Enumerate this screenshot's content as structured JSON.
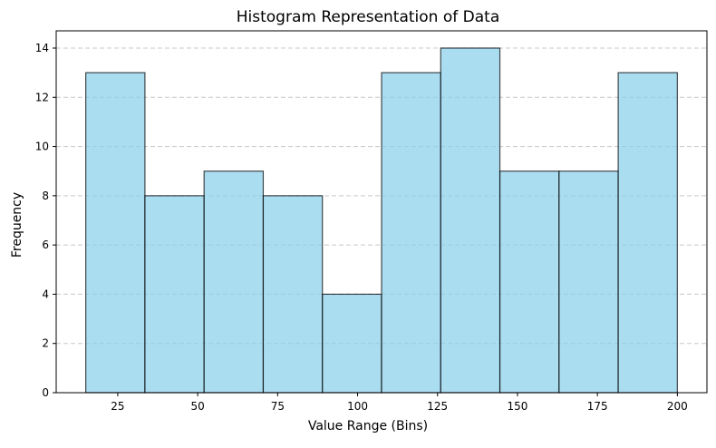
{
  "chart_data": {
    "type": "bar",
    "title": "Histogram Representation of Data",
    "xlabel": "Value Range (Bins)",
    "ylabel": "Frequency",
    "bin_edges": [
      15.0,
      33.5,
      52.0,
      70.5,
      89.0,
      107.5,
      126.0,
      144.5,
      163.0,
      181.5,
      200.0
    ],
    "values": [
      13,
      8,
      9,
      8,
      4,
      13,
      14,
      9,
      9,
      13
    ],
    "xlim": [
      5.75,
      209.25
    ],
    "ylim": [
      0,
      14.7
    ],
    "xticks": [
      25,
      50,
      75,
      100,
      125,
      150,
      175,
      200
    ],
    "yticks": [
      0,
      2,
      4,
      6,
      8,
      10,
      12,
      14
    ],
    "grid": "y-dashed",
    "colors": {
      "bar_fill": "#87CEEB",
      "bar_edge": "#000000",
      "grid": "#c8c8c8"
    }
  }
}
